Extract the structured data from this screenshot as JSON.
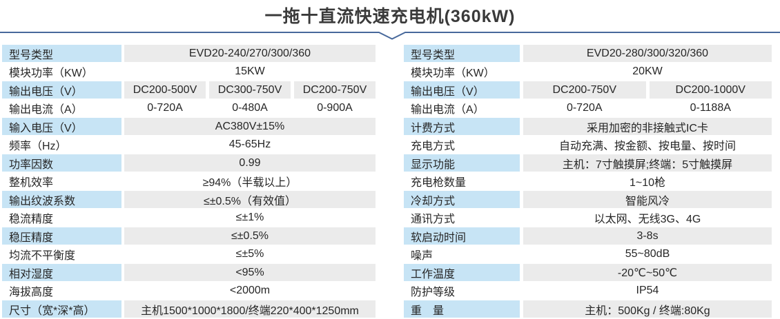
{
  "page": {
    "title": "一拖十直流快速充电机(360kW)"
  },
  "colors": {
    "label_bg": "#c7e4f5",
    "value_bg": "#ebebeb",
    "divider": "#47689b",
    "title_color": "#3a3a3a",
    "text": "#262626"
  },
  "tables": [
    {
      "id": "left",
      "rows": [
        {
          "label": "型号类型",
          "values": [
            "EVD20-240/270/300/360"
          ],
          "shaded": true
        },
        {
          "label": "模块功率（KW）",
          "values": [
            "15KW"
          ],
          "shaded": false
        },
        {
          "label": "输出电压（V）",
          "values": [
            "DC200-500V",
            "DC300-750V",
            "DC200-750V"
          ],
          "shaded": true
        },
        {
          "label": "输出电流（A）",
          "values": [
            "0-720A",
            "0-480A",
            "0-900A"
          ],
          "shaded": false
        },
        {
          "label": "输入电压（V）",
          "values": [
            "AC380V±15%"
          ],
          "shaded": true
        },
        {
          "label": "频率（Hz）",
          "values": [
            "45-65Hz"
          ],
          "shaded": false
        },
        {
          "label": "功率因数",
          "values": [
            "0.99"
          ],
          "shaded": true
        },
        {
          "label": "整机效率",
          "values": [
            "≥94%（半载以上）"
          ],
          "shaded": false
        },
        {
          "label": "输出纹波系数",
          "values": [
            "≤±0.5%（有效值）"
          ],
          "shaded": true
        },
        {
          "label": "稳流精度",
          "values": [
            "≤±1%"
          ],
          "shaded": false
        },
        {
          "label": "稳压精度",
          "values": [
            "≤±0.5%"
          ],
          "shaded": true
        },
        {
          "label": "均流不平衡度",
          "values": [
            "≤±5%"
          ],
          "shaded": false
        },
        {
          "label": "相对湿度",
          "values": [
            "<95%"
          ],
          "shaded": true
        },
        {
          "label": "海拔高度",
          "values": [
            "<2000m"
          ],
          "shaded": false
        },
        {
          "label": "尺寸（宽*深*高）",
          "values": [
            "主机1500*1000*1800/终端220*400*1250mm"
          ],
          "shaded": true
        }
      ]
    },
    {
      "id": "right",
      "rows": [
        {
          "label": "型号类型",
          "values": [
            "EVD20-280/300/320/360"
          ],
          "shaded": true
        },
        {
          "label": "模块功率（KW）",
          "values": [
            "20KW"
          ],
          "shaded": false
        },
        {
          "label": "输出电压（V）",
          "values": [
            "DC200-750V",
            "DC200-1000V"
          ],
          "shaded": true
        },
        {
          "label": "输出电流（A）",
          "values": [
            "0-720A",
            "0-1188A"
          ],
          "shaded": false
        },
        {
          "label": "计费方式",
          "values": [
            "采用加密的非接触式IC卡"
          ],
          "shaded": true
        },
        {
          "label": "充电方式",
          "values": [
            "自动充满、按金额、按电量、按时间"
          ],
          "shaded": false
        },
        {
          "label": "显示功能",
          "values": [
            "主机：7寸触摸屏;终端：5寸触摸屏"
          ],
          "shaded": true
        },
        {
          "label": "充电枪数量",
          "values": [
            "1~10枪"
          ],
          "shaded": false
        },
        {
          "label": "冷却方式",
          "values": [
            "智能风冷"
          ],
          "shaded": true
        },
        {
          "label": "通讯方式",
          "values": [
            "以太网、无线3G、4G"
          ],
          "shaded": false
        },
        {
          "label": "软启动时间",
          "values": [
            "3-8s"
          ],
          "shaded": true
        },
        {
          "label": "噪声",
          "values": [
            "55~80dB"
          ],
          "shaded": false
        },
        {
          "label": "工作温度",
          "values": [
            "-20℃~50℃"
          ],
          "shaded": true
        },
        {
          "label": "防护等级",
          "values": [
            "IP54"
          ],
          "shaded": false
        },
        {
          "label": "重　量",
          "values": [
            "主机：500Kg / 终端:80Kg"
          ],
          "shaded": true
        }
      ]
    }
  ]
}
